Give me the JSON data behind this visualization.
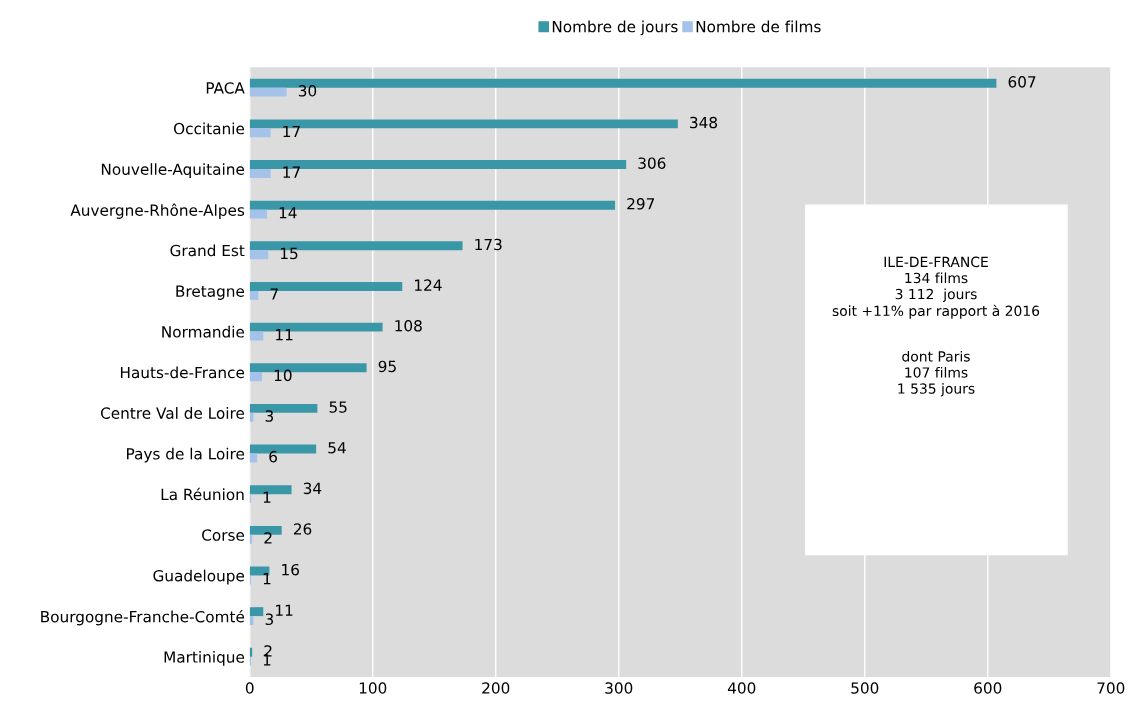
{
  "chart_data": {
    "type": "bar",
    "orientation": "horizontal",
    "categories": [
      "PACA",
      "Occitanie",
      "Nouvelle-Aquitaine",
      "Auvergne-Rhône-Alpes",
      "Grand Est",
      "Bretagne",
      "Normandie",
      "Hauts-de-France",
      "Centre Val de Loire",
      "Pays de la Loire",
      "La Réunion",
      "Corse",
      "Guadeloupe",
      "Bourgogne-Franche-Comté",
      "Martinique"
    ],
    "series": [
      {
        "name": "Nombre de jours",
        "color": "#3a97a8",
        "values": [
          607,
          348,
          306,
          297,
          173,
          124,
          108,
          95,
          55,
          54,
          34,
          26,
          16,
          11,
          2
        ]
      },
      {
        "name": "Nombre de films",
        "color": "#a4c2ea",
        "values": [
          30,
          17,
          17,
          14,
          15,
          7,
          11,
          10,
          3,
          6,
          1,
          2,
          1,
          3,
          1
        ]
      }
    ],
    "xlim": [
      0,
      700
    ],
    "xticks": [
      0,
      100,
      200,
      300,
      400,
      500,
      600,
      700
    ],
    "grid": "x",
    "legend": "top",
    "data_labels": true,
    "annotations": [
      "ILE-DE-FRANCE\n134 films\n3 112  jours\nsoit +11% par rapport à 2016",
      "dont Paris\n107 films\n1 535 jours"
    ]
  }
}
